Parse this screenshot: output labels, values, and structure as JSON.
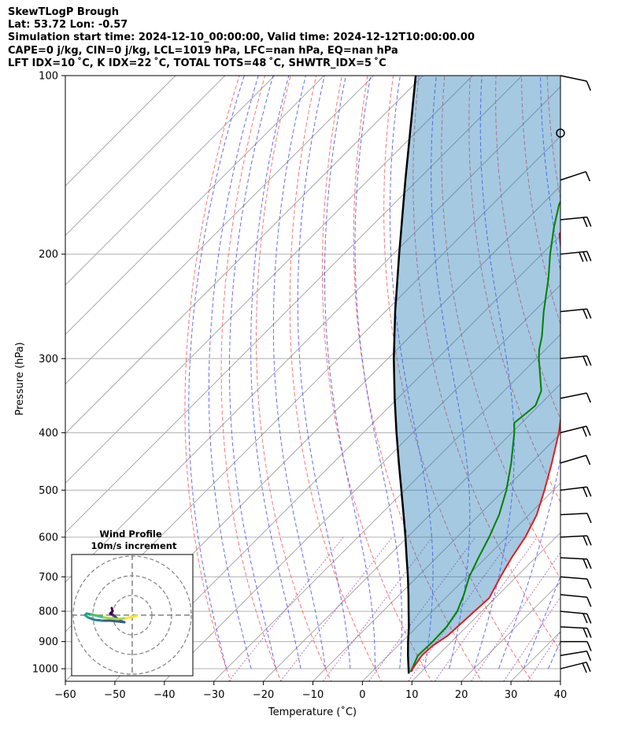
{
  "header": {
    "line1": "SkewTLogP Brough",
    "line2": "Lat: 53.72   Lon: -0.57",
    "line3": "Simulation start time: 2024-12-10_00:00:00, Valid time: 2024-12-12T10:00:00.00",
    "line4": "CAPE=0 j/kg, CIN=0 j/kg, LCL=1019 hPa, LFC=nan hPa, EQ=nan hPa",
    "line5": "LFT IDX=10 ˚C, K IDX=22 ˚C, TOTAL TOTS=48 ˚C, SHWTR_IDX=5 ˚C"
  },
  "chart_data": {
    "type": "line",
    "subtype": "skew-t log-p",
    "xlabel": "Temperature (˚C)",
    "ylabel": "Pressure (hPa)",
    "xlim": [
      -60,
      40
    ],
    "ylim": [
      1050,
      100
    ],
    "y_scale": "log",
    "skew": "45 degrees",
    "grid": true,
    "x_ticks": [
      "−60",
      "−50",
      "−40",
      "−30",
      "−20",
      "−10",
      "0",
      "10",
      "20",
      "30",
      "40"
    ],
    "y_ticks": [
      "100",
      "200",
      "300",
      "400",
      "500",
      "600",
      "700",
      "800",
      "900",
      "1000"
    ],
    "series": [
      {
        "role": "temperature",
        "color": "#e41a1c",
        "points": [
          [
            1012,
            8
          ],
          [
            1000,
            7.6
          ],
          [
            950,
            6.8
          ],
          [
            915,
            7.0
          ],
          [
            880,
            8.0
          ],
          [
            800,
            8.5
          ],
          [
            760,
            8.8
          ],
          [
            700,
            6.8
          ],
          [
            650,
            5.2
          ],
          [
            600,
            3.8
          ],
          [
            550,
            1.6
          ],
          [
            500,
            -1.8
          ],
          [
            450,
            -5.8
          ],
          [
            400,
            -10.5
          ],
          [
            350,
            -16.5
          ],
          [
            300,
            -24.2
          ],
          [
            250,
            -33.5
          ],
          [
            220,
            -40.8
          ],
          [
            200,
            -46.0
          ],
          [
            185,
            -50.5
          ],
          [
            178,
            -51.2
          ],
          [
            170,
            -50.6
          ],
          [
            160,
            -49.8
          ],
          [
            150,
            -49.2
          ],
          [
            140,
            -49.5
          ],
          [
            130,
            -50.0
          ],
          [
            120,
            -50.3
          ],
          [
            110,
            -51.0
          ],
          [
            100,
            -52.0
          ]
        ]
      },
      {
        "role": "dewpoint",
        "color": "#008000",
        "points": [
          [
            1012,
            7.8
          ],
          [
            1000,
            7.5
          ],
          [
            950,
            6.0
          ],
          [
            900,
            6.2
          ],
          [
            850,
            6.0
          ],
          [
            800,
            5.0
          ],
          [
            750,
            3.0
          ],
          [
            700,
            0.5
          ],
          [
            650,
            -1.5
          ],
          [
            600,
            -3.5
          ],
          [
            550,
            -6.0
          ],
          [
            500,
            -9.5
          ],
          [
            450,
            -14.0
          ],
          [
            400,
            -19.5
          ],
          [
            385,
            -21.5
          ],
          [
            370,
            -21.0
          ],
          [
            360,
            -20.7
          ],
          [
            340,
            -22.5
          ],
          [
            300,
            -29.5
          ],
          [
            290,
            -31.2
          ],
          [
            275,
            -33.4
          ],
          [
            250,
            -38.0
          ],
          [
            220,
            -43.7
          ],
          [
            200,
            -48.3
          ],
          [
            180,
            -53.0
          ],
          [
            165,
            -56.5
          ],
          [
            150,
            -59.0
          ],
          [
            140,
            -61.0
          ],
          [
            130,
            -63.5
          ],
          [
            120,
            -66.0
          ],
          [
            110,
            -69.5
          ],
          [
            100,
            -72.0
          ]
        ]
      },
      {
        "role": "parcel path",
        "color": "#000000",
        "points": [
          [
            1019,
            7.8
          ],
          [
            950,
            4.0
          ],
          [
            900,
            1.2
          ],
          [
            850,
            -1.6
          ],
          [
            800,
            -4.8
          ],
          [
            750,
            -8.2
          ],
          [
            700,
            -11.9
          ],
          [
            650,
            -16.0
          ],
          [
            600,
            -20.4
          ],
          [
            550,
            -25.3
          ],
          [
            500,
            -30.7
          ],
          [
            450,
            -36.7
          ],
          [
            400,
            -43.3
          ],
          [
            350,
            -50.6
          ],
          [
            300,
            -58.8
          ],
          [
            250,
            -68.0
          ],
          [
            200,
            -78.8
          ],
          [
            150,
            -92.5
          ],
          [
            100,
            -111.5
          ]
        ]
      }
    ],
    "wind_barbs": [
      "1000 hPa",
      "950 hPa",
      "900 hPa",
      "850 hPa",
      "800 hPa",
      "750 hPa",
      "700 hPa",
      "650 hPa",
      "600 hPa",
      "550 hPa",
      "500 hPa",
      "450 hPa",
      "400 hPa",
      "350 hPa",
      "300 hPa",
      "250 hPa",
      "200 hPa",
      "175 hPa",
      "150 hPa",
      "125 hPa",
      "100 hPa"
    ],
    "inset": {
      "title": "Wind Profile",
      "subtitle": "10m/s increment",
      "type": "hodograph"
    }
  }
}
